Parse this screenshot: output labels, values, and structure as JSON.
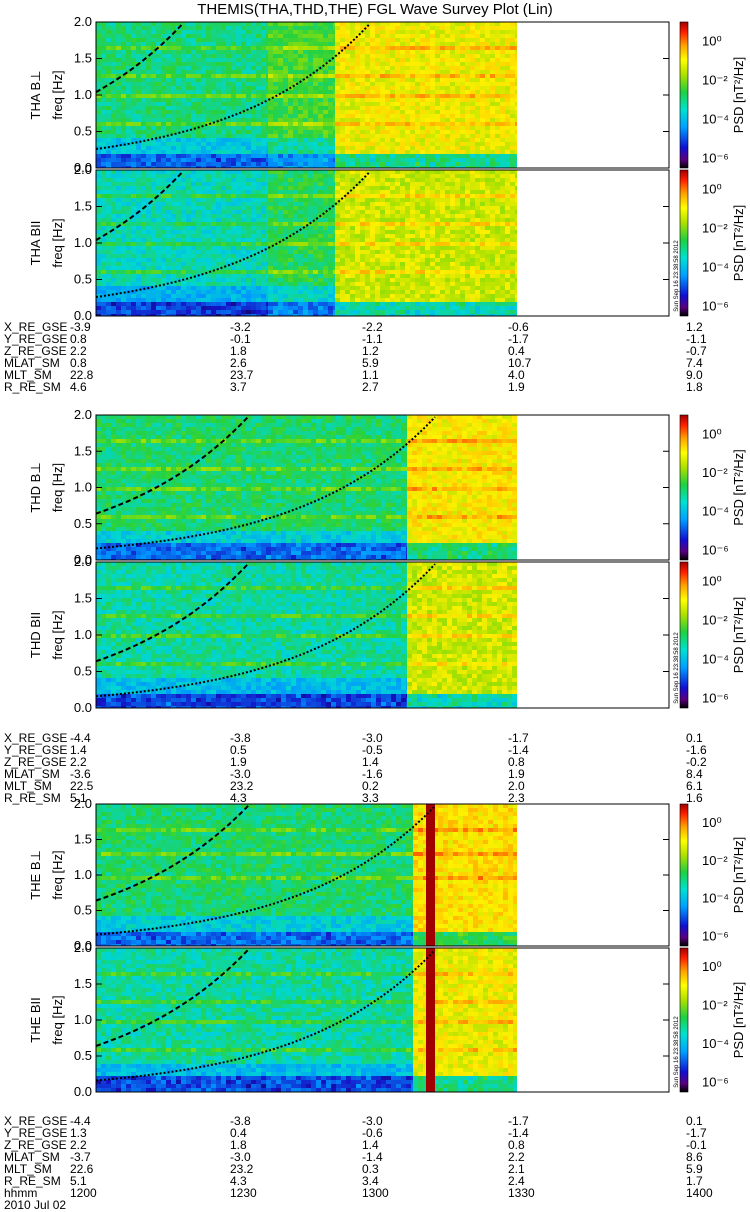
{
  "title": "THEMIS(THA,THD,THE) FGL Wave Survey Plot (Lin)",
  "stamp": "Sun Sep 16 23:38:58 2012",
  "colorbar": {
    "label": "PSD [nT²/Hz]",
    "ticks": [
      "10⁰",
      "10⁻²",
      "10⁻⁴",
      "10⁻⁶"
    ],
    "tick_values": [
      1,
      0.01,
      0.0001,
      1e-06
    ]
  },
  "chart_data": {
    "type": "heatmap",
    "freq_ticks": [
      "2.0",
      "1.5",
      "1.0",
      "0.5",
      "0.0"
    ],
    "ylim": [
      0,
      2.0
    ],
    "panels": [
      {
        "probe": "THA",
        "component": "B⊥",
        "ylabel_main": "THA B⊥",
        "ylabel_sub": "freq [Hz]"
      },
      {
        "probe": "THA",
        "component": "BII",
        "ylabel_main": "THA BII",
        "ylabel_sub": "freq [Hz]"
      },
      {
        "probe": "THD",
        "component": "B⊥",
        "ylabel_main": "THD B⊥",
        "ylabel_sub": "freq [Hz]"
      },
      {
        "probe": "THD",
        "component": "BII",
        "ylabel_main": "THD BII",
        "ylabel_sub": "freq [Hz]"
      },
      {
        "probe": "THE",
        "component": "B⊥",
        "ylabel_main": "THE B⊥",
        "ylabel_sub": "freq [Hz]"
      },
      {
        "probe": "THE",
        "component": "BII",
        "ylabel_main": "THE BII",
        "ylabel_sub": "freq [Hz]"
      }
    ],
    "time_axis": {
      "label": "hhmm",
      "ticks": [
        "1200",
        "1230",
        "1300",
        "1330",
        "1400"
      ],
      "date": "2010 Jul 02"
    },
    "ephemeris": [
      {
        "probe": "THA",
        "rows": [
          {
            "label": "X_RE_GSE",
            "values": [
              "-3.9",
              "-3.2",
              "-2.2",
              "-0.6",
              "1.2"
            ]
          },
          {
            "label": "Y_RE_GSE",
            "values": [
              "0.8",
              "-0.1",
              "-1.1",
              "-1.7",
              "-1.1"
            ]
          },
          {
            "label": "Z_RE_GSE",
            "values": [
              "2.2",
              "1.8",
              "1.2",
              "0.4",
              "-0.7"
            ]
          },
          {
            "label": "MLAT_SM",
            "values": [
              "0.8",
              "2.6",
              "5.9",
              "10.7",
              "7.4"
            ]
          },
          {
            "label": "MLT_SM",
            "values": [
              "22.8",
              "23.7",
              "1.1",
              "4.0",
              "9.0"
            ]
          },
          {
            "label": "R_RE_SM",
            "values": [
              "4.6",
              "3.7",
              "2.7",
              "1.9",
              "1.8"
            ]
          }
        ]
      },
      {
        "probe": "THD",
        "rows": [
          {
            "label": "X_RE_GSE",
            "values": [
              "-4.4",
              "-3.8",
              "-3.0",
              "-1.7",
              "0.1"
            ]
          },
          {
            "label": "Y_RE_GSE",
            "values": [
              "1.4",
              "0.5",
              "-0.5",
              "-1.4",
              "-1.6"
            ]
          },
          {
            "label": "Z_RE_GSE",
            "values": [
              "2.2",
              "1.9",
              "1.4",
              "0.8",
              "-0.2"
            ]
          },
          {
            "label": "MLAT_SM",
            "values": [
              "-3.6",
              "-3.0",
              "-1.6",
              "1.9",
              "8.4"
            ]
          },
          {
            "label": "MLT_SM",
            "values": [
              "22.5",
              "23.2",
              "0.2",
              "2.0",
              "6.1"
            ]
          },
          {
            "label": "R_RE_SM",
            "values": [
              "5.1",
              "4.3",
              "3.3",
              "2.3",
              "1.6"
            ]
          }
        ]
      },
      {
        "probe": "THE",
        "rows": [
          {
            "label": "X_RE_GSE",
            "values": [
              "-4.4",
              "-3.8",
              "-3.0",
              "-1.7",
              "0.1"
            ]
          },
          {
            "label": "Y_RE_GSE",
            "values": [
              "1.3",
              "0.4",
              "-0.6",
              "-1.4",
              "-1.7"
            ]
          },
          {
            "label": "Z_RE_GSE",
            "values": [
              "2.2",
              "1.8",
              "1.4",
              "0.8",
              "-0.1"
            ]
          },
          {
            "label": "MLAT_SM",
            "values": [
              "-3.7",
              "-3.0",
              "-1.4",
              "2.2",
              "8.6"
            ]
          },
          {
            "label": "MLT_SM",
            "values": [
              "22.6",
              "23.2",
              "0.3",
              "2.1",
              "5.9"
            ]
          },
          {
            "label": "R_RE_SM",
            "values": [
              "5.1",
              "4.3",
              "3.4",
              "2.4",
              "1.7"
            ]
          }
        ]
      }
    ]
  }
}
